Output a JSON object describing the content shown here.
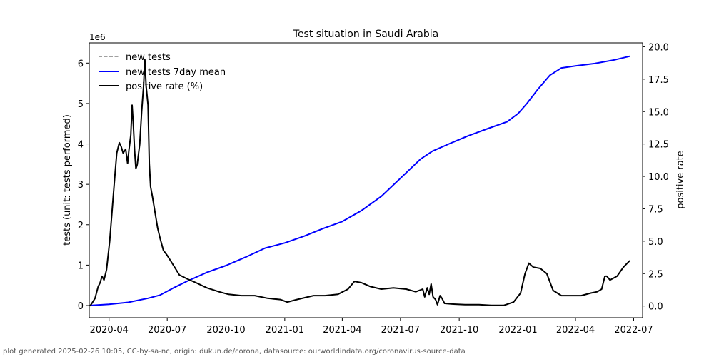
{
  "chart_data": {
    "type": "line",
    "title": "Test situation in Saudi Arabia",
    "ylabel_left": "tests (unit: tests performed)",
    "ylabel_right": "positive rate",
    "left_axis_multiplier": "1e6",
    "x_ticks": [
      "2020-04",
      "2020-07",
      "2020-10",
      "2021-01",
      "2021-04",
      "2021-07",
      "2021-10",
      "2022-01",
      "2022-04",
      "2022-07"
    ],
    "ylim_left": [
      -300000,
      6500000
    ],
    "y_ticks_left": [
      0,
      1,
      2,
      3,
      4,
      5,
      6
    ],
    "ylim_right": [
      -0.9,
      20.3
    ],
    "y_ticks_right": [
      0.0,
      2.5,
      5.0,
      7.5,
      10.0,
      12.5,
      15.0,
      17.5,
      20.0
    ],
    "legend_position": "top-left",
    "legend": [
      "new tests",
      "new tests 7day mean",
      "positive rate (%)"
    ],
    "colors": {
      "new_tests": "#808080",
      "mean": "#0000ff",
      "positive": "#000000"
    },
    "x_start": "2020-03-01",
    "x_end": "2022-07-15",
    "series": [
      {
        "name": "new tests 7day mean",
        "axis": "left",
        "points": [
          [
            "2020-03-02",
            0
          ],
          [
            "2020-04-01",
            30000
          ],
          [
            "2020-05-01",
            80000
          ],
          [
            "2020-06-01",
            180000
          ],
          [
            "2020-06-20",
            260000
          ],
          [
            "2020-07-10",
            430000
          ],
          [
            "2020-08-01",
            600000
          ],
          [
            "2020-09-01",
            820000
          ],
          [
            "2020-10-01",
            990000
          ],
          [
            "2020-11-01",
            1200000
          ],
          [
            "2020-12-01",
            1420000
          ],
          [
            "2021-01-01",
            1550000
          ],
          [
            "2021-02-01",
            1720000
          ],
          [
            "2021-03-01",
            1900000
          ],
          [
            "2021-04-01",
            2080000
          ],
          [
            "2021-05-01",
            2350000
          ],
          [
            "2021-06-01",
            2700000
          ],
          [
            "2021-07-01",
            3150000
          ],
          [
            "2021-08-01",
            3620000
          ],
          [
            "2021-08-20",
            3820000
          ],
          [
            "2021-09-15",
            4000000
          ],
          [
            "2021-10-15",
            4200000
          ],
          [
            "2021-11-15",
            4380000
          ],
          [
            "2021-12-15",
            4550000
          ],
          [
            "2022-01-01",
            4750000
          ],
          [
            "2022-01-15",
            5000000
          ],
          [
            "2022-02-01",
            5350000
          ],
          [
            "2022-02-20",
            5700000
          ],
          [
            "2022-03-10",
            5880000
          ],
          [
            "2022-04-01",
            5930000
          ],
          [
            "2022-05-01",
            5990000
          ],
          [
            "2022-06-01",
            6080000
          ],
          [
            "2022-06-25",
            6170000
          ]
        ]
      },
      {
        "name": "positive rate (%)",
        "axis": "right",
        "points": [
          [
            "2020-03-02",
            0.0
          ],
          [
            "2020-03-05",
            0.2
          ],
          [
            "2020-03-10",
            0.6
          ],
          [
            "2020-03-15",
            1.5
          ],
          [
            "2020-03-18",
            1.8
          ],
          [
            "2020-03-21",
            2.3
          ],
          [
            "2020-03-24",
            2.0
          ],
          [
            "2020-03-28",
            2.8
          ],
          [
            "2020-04-02",
            5.0
          ],
          [
            "2020-04-06",
            7.5
          ],
          [
            "2020-04-10",
            10.0
          ],
          [
            "2020-04-13",
            11.8
          ],
          [
            "2020-04-17",
            12.6
          ],
          [
            "2020-04-20",
            12.3
          ],
          [
            "2020-04-23",
            11.8
          ],
          [
            "2020-04-27",
            12.1
          ],
          [
            "2020-04-30",
            11.0
          ],
          [
            "2020-05-02",
            12.0
          ],
          [
            "2020-05-05",
            13.2
          ],
          [
            "2020-05-07",
            15.5
          ],
          [
            "2020-05-09",
            14.0
          ],
          [
            "2020-05-11",
            12.0
          ],
          [
            "2020-05-13",
            10.6
          ],
          [
            "2020-05-15",
            10.9
          ],
          [
            "2020-05-19",
            12.5
          ],
          [
            "2020-05-22",
            15.0
          ],
          [
            "2020-05-25",
            17.0
          ],
          [
            "2020-05-27",
            19.0
          ],
          [
            "2020-05-29",
            17.0
          ],
          [
            "2020-06-01",
            15.5
          ],
          [
            "2020-06-03",
            11.0
          ],
          [
            "2020-06-05",
            9.2
          ],
          [
            "2020-06-08",
            8.4
          ],
          [
            "2020-06-12",
            7.2
          ],
          [
            "2020-06-16",
            6.0
          ],
          [
            "2020-06-20",
            5.2
          ],
          [
            "2020-06-25",
            4.3
          ],
          [
            "2020-07-01",
            3.9
          ],
          [
            "2020-07-10",
            3.2
          ],
          [
            "2020-07-20",
            2.4
          ],
          [
            "2020-08-01",
            2.1
          ],
          [
            "2020-08-15",
            1.8
          ],
          [
            "2020-09-01",
            1.4
          ],
          [
            "2020-09-20",
            1.1
          ],
          [
            "2020-10-05",
            0.9
          ],
          [
            "2020-10-25",
            0.8
          ],
          [
            "2020-11-15",
            0.8
          ],
          [
            "2020-12-05",
            0.6
          ],
          [
            "2020-12-25",
            0.5
          ],
          [
            "2021-01-05",
            0.3
          ],
          [
            "2021-01-20",
            0.5
          ],
          [
            "2021-02-15",
            0.8
          ],
          [
            "2021-03-05",
            0.8
          ],
          [
            "2021-03-25",
            0.9
          ],
          [
            "2021-04-10",
            1.3
          ],
          [
            "2021-04-20",
            1.9
          ],
          [
            "2021-05-01",
            1.8
          ],
          [
            "2021-05-15",
            1.5
          ],
          [
            "2021-06-01",
            1.3
          ],
          [
            "2021-06-20",
            1.4
          ],
          [
            "2021-07-10",
            1.3
          ],
          [
            "2021-07-25",
            1.1
          ],
          [
            "2021-08-05",
            1.3
          ],
          [
            "2021-08-08",
            0.7
          ],
          [
            "2021-08-12",
            1.4
          ],
          [
            "2021-08-15",
            0.9
          ],
          [
            "2021-08-18",
            1.7
          ],
          [
            "2021-08-21",
            0.7
          ],
          [
            "2021-08-25",
            0.5
          ],
          [
            "2021-08-28",
            0.1
          ],
          [
            "2021-09-01",
            0.8
          ],
          [
            "2021-09-04",
            0.6
          ],
          [
            "2021-09-08",
            0.2
          ],
          [
            "2021-09-20",
            0.15
          ],
          [
            "2021-10-10",
            0.1
          ],
          [
            "2021-11-01",
            0.1
          ],
          [
            "2021-11-20",
            0.05
          ],
          [
            "2021-12-10",
            0.05
          ],
          [
            "2021-12-25",
            0.3
          ],
          [
            "2022-01-05",
            1.0
          ],
          [
            "2022-01-12",
            2.5
          ],
          [
            "2022-01-18",
            3.3
          ],
          [
            "2022-01-25",
            3.0
          ],
          [
            "2022-02-05",
            2.9
          ],
          [
            "2022-02-15",
            2.5
          ],
          [
            "2022-02-25",
            1.2
          ],
          [
            "2022-03-10",
            0.8
          ],
          [
            "2022-03-25",
            0.8
          ],
          [
            "2022-04-10",
            0.8
          ],
          [
            "2022-04-25",
            1.0
          ],
          [
            "2022-05-05",
            1.1
          ],
          [
            "2022-05-12",
            1.3
          ],
          [
            "2022-05-17",
            2.3
          ],
          [
            "2022-05-20",
            2.3
          ],
          [
            "2022-05-25",
            2.0
          ],
          [
            "2022-06-05",
            2.3
          ],
          [
            "2022-06-15",
            3.0
          ],
          [
            "2022-06-25",
            3.5
          ]
        ]
      }
    ]
  },
  "footer": "plot generated 2025-02-26 10:05, CC-by-sa-nc, origin: dukun.de/corona, datasource: ourworldindata.org/coronavirus-source-data"
}
